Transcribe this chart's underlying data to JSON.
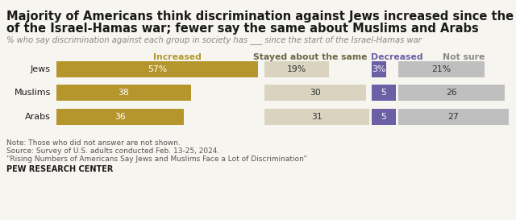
{
  "title_line1": "Majority of Americans think discrimination against Jews increased since the start",
  "title_line2": "of the Israel-Hamas war; fewer say the same about Muslims and Arabs",
  "subtitle": "% who say discrimination against each group in society has ___ since the start of the Israel-Hamas war",
  "groups": [
    "Jews",
    "Muslims",
    "Arabs"
  ],
  "categories": [
    "Increased",
    "Stayed about the same",
    "Decreased",
    "Not sure"
  ],
  "values": [
    [
      57,
      19,
      3,
      21
    ],
    [
      38,
      30,
      5,
      26
    ],
    [
      36,
      31,
      5,
      27
    ]
  ],
  "labels": [
    [
      "57%",
      "19%",
      "3%",
      "21%"
    ],
    [
      "38",
      "30",
      "5",
      "26"
    ],
    [
      "36",
      "31",
      "5",
      "27"
    ]
  ],
  "bar_colors": [
    "#b5962d",
    "#d9d3bf",
    "#6b5fa5",
    "#c0bfbf"
  ],
  "col_header_colors": [
    "#b5962d",
    "#6b6645",
    "#6b5fa5",
    "#888888"
  ],
  "note_lines": [
    "Note: Those who did not answer are not shown.",
    "Source: Survey of U.S. adults conducted Feb. 13-25, 2024.",
    "“Rising Numbers of Americans Say Jews and Muslims Face a Lot of Discrimination”"
  ],
  "footer": "PEW RESEARCH CENTER",
  "bg_color": "#f7f5f0",
  "top_bar_color": "#c8a030",
  "text_color": "#1a1a1a",
  "note_color": "#555555",
  "title_fontsize": 10.5,
  "subtitle_fontsize": 7.2,
  "header_fontsize": 7.8,
  "bar_label_fontsize": 7.8,
  "group_label_fontsize": 8.0,
  "note_fontsize": 6.5,
  "footer_fontsize": 7.0
}
